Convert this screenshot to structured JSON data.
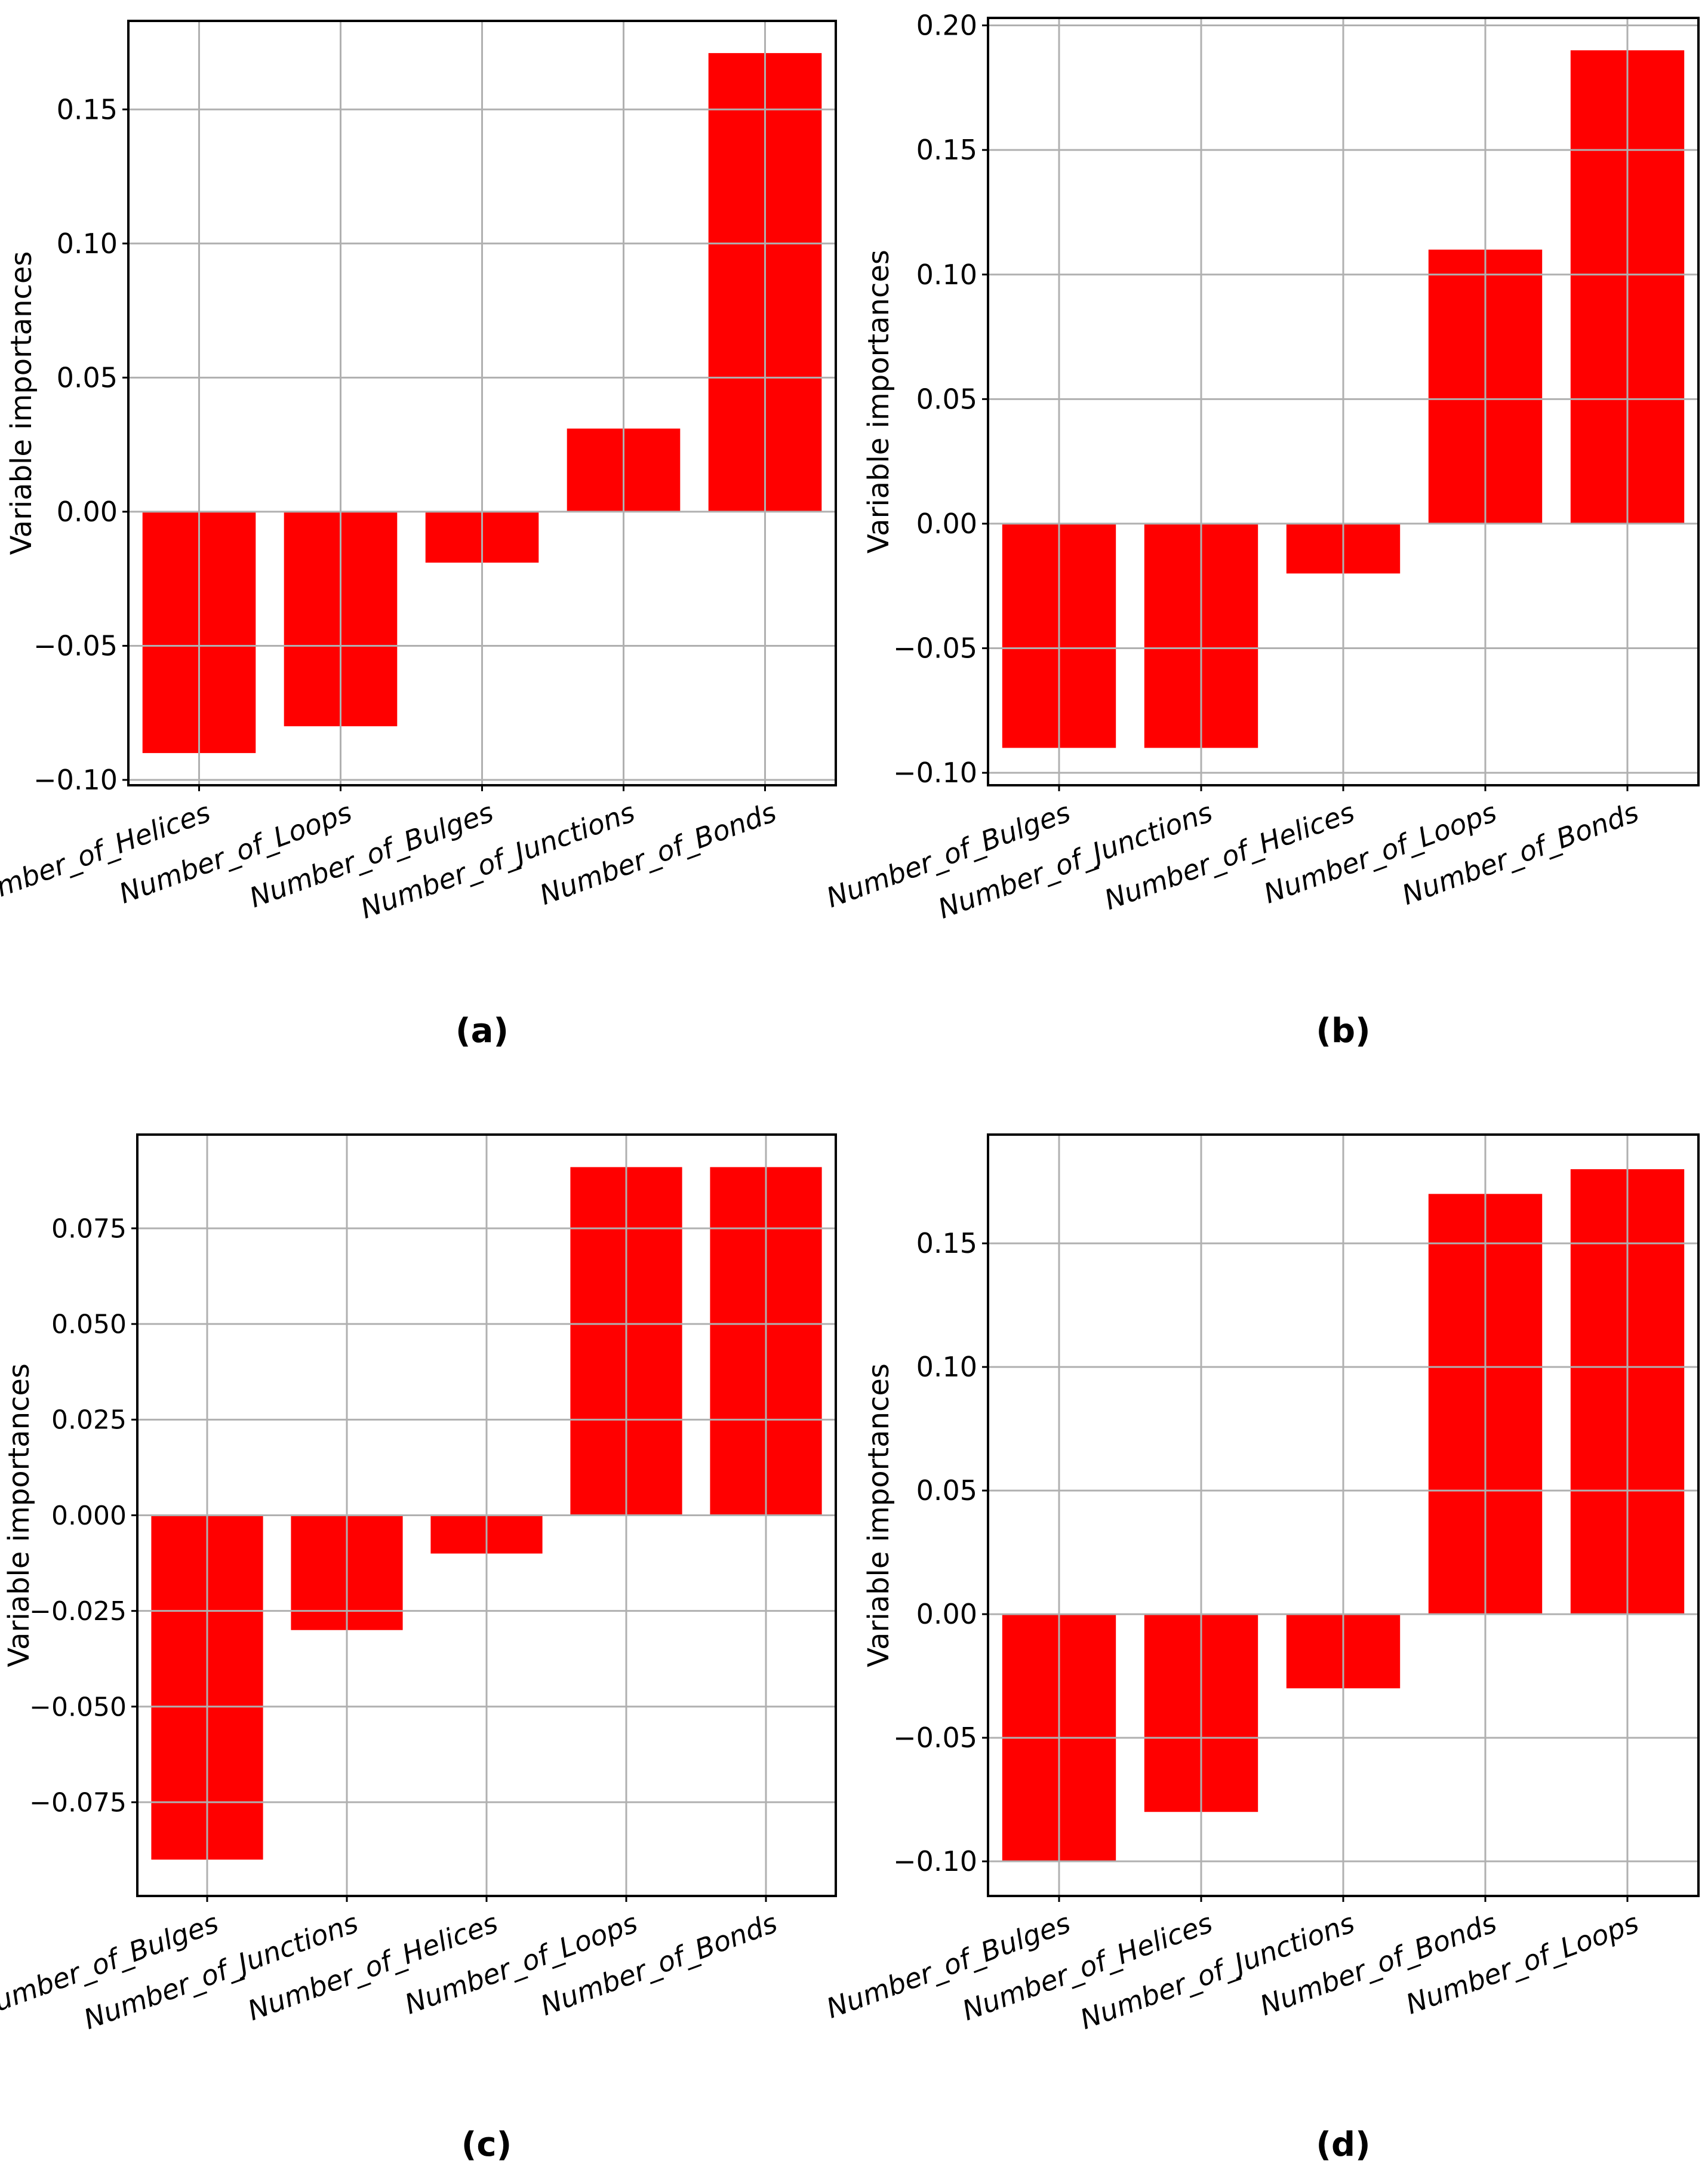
{
  "figure": {
    "panel_labels": [
      "(a)",
      "(b)",
      "(c)",
      "(d)"
    ]
  },
  "chart_data": [
    {
      "type": "bar",
      "panel": "a",
      "caption": "(a)",
      "ylabel": "Variable importances",
      "categories": [
        "Number_of_Helices",
        "Number_of_Loops",
        "Number_of_Bulges",
        "Number_of_Junctions",
        "Number_of_Bonds"
      ],
      "values": [
        -0.09,
        -0.08,
        -0.019,
        0.031,
        0.171
      ],
      "ylim": [
        -0.102,
        0.183
      ],
      "yticks": [
        -0.1,
        -0.05,
        0.0,
        0.05,
        0.1,
        0.15
      ],
      "ytick_labels": [
        "−0.10",
        "−0.05",
        "0.00",
        "0.05",
        "0.10",
        "0.15"
      ],
      "grid": true,
      "bar_color": "#ff0000"
    },
    {
      "type": "bar",
      "panel": "b",
      "caption": "(b)",
      "ylabel": "Variable importances",
      "categories": [
        "Number_of_Bulges",
        "Number_of_Junctions",
        "Number_of_Helices",
        "Number_of_Loops",
        "Number_of_Bonds"
      ],
      "values": [
        -0.09,
        -0.09,
        -0.02,
        0.11,
        0.19
      ],
      "ylim": [
        -0.105,
        0.203
      ],
      "yticks": [
        -0.1,
        -0.05,
        0.0,
        0.05,
        0.1,
        0.15,
        0.2
      ],
      "ytick_labels": [
        "−0.10",
        "−0.05",
        "0.00",
        "0.05",
        "0.10",
        "0.15",
        "0.20"
      ],
      "grid": true,
      "bar_color": "#ff0000"
    },
    {
      "type": "bar",
      "panel": "c",
      "caption": "(c)",
      "ylabel": "Variable importances",
      "categories": [
        "Number_of_Bulges",
        "Number_of_Junctions",
        "Number_of_Helices",
        "Number_of_Loops",
        "Number_of_Bonds"
      ],
      "values": [
        -0.09,
        -0.03,
        -0.01,
        0.091,
        0.091
      ],
      "ylim": [
        -0.0995,
        0.0995
      ],
      "yticks": [
        -0.075,
        -0.05,
        -0.025,
        0.0,
        0.025,
        0.05,
        0.075
      ],
      "ytick_labels": [
        "−0.075",
        "−0.050",
        "−0.025",
        "0.000",
        "0.025",
        "0.050",
        "0.075"
      ],
      "grid": true,
      "bar_color": "#ff0000"
    },
    {
      "type": "bar",
      "panel": "d",
      "caption": "(d)",
      "ylabel": "Variable importances",
      "categories": [
        "Number_of_Bulges",
        "Number_of_Helices",
        "Number_of_Junctions",
        "Number_of_Bonds",
        "Number_of_Loops"
      ],
      "values": [
        -0.1,
        -0.08,
        -0.03,
        0.17,
        0.18
      ],
      "ylim": [
        -0.114,
        0.194
      ],
      "yticks": [
        -0.1,
        -0.05,
        0.0,
        0.05,
        0.1,
        0.15
      ],
      "ytick_labels": [
        "−0.10",
        "−0.05",
        "0.00",
        "0.05",
        "0.10",
        "0.15"
      ],
      "grid": true,
      "bar_color": "#ff0000"
    }
  ]
}
